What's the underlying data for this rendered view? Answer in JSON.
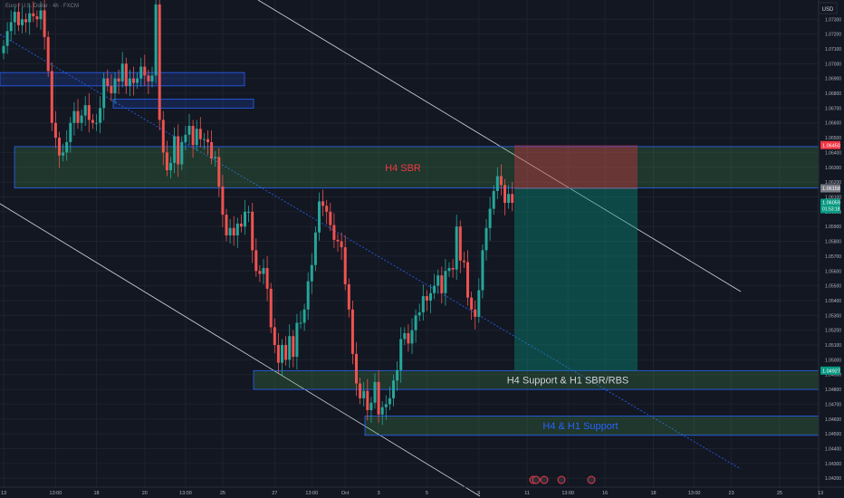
{
  "header": {
    "symbol_title": "Euro / U.S. Dollar · 4h · FXCM"
  },
  "price_scale": {
    "currency": "USD",
    "badges": {
      "stop": "1.06450",
      "current": "1.06059",
      "countdown": "01:53:18",
      "entry": "1.06158",
      "target": "1.04927"
    }
  },
  "zones": [
    {
      "id": "h4-sbr",
      "label": "H4 SBR",
      "price_top": 1.0644,
      "price_bottom": 1.0616,
      "color": "#4caf50",
      "label_color": "#f23645"
    },
    {
      "id": "h4-support",
      "label": "H4 Support & H1 SBR/RBS",
      "price_top": 1.04927,
      "price_bottom": 1.048,
      "color": "#4caf50",
      "label_color": "#d1d4dc"
    },
    {
      "id": "h4-h1-support",
      "label": "H4 & H1 Support",
      "price_top": 1.0462,
      "price_bottom": 1.0449,
      "color": "#4caf50",
      "label_color": "#2962ff"
    },
    {
      "id": "upper-left-1",
      "label": "",
      "price_top": 1.0694,
      "price_bottom": 1.0685,
      "color": "#2962ff",
      "label_color": ""
    },
    {
      "id": "upper-left-2",
      "label": "",
      "price_top": 1.0676,
      "price_bottom": 1.067,
      "color": "#2962ff",
      "label_color": ""
    }
  ],
  "position": {
    "type": "short",
    "entry": 1.06158,
    "stop": 1.0645,
    "target": 1.04927
  },
  "colors": {
    "background": "#131722",
    "grid": "#1e222d",
    "up": "#26a69a",
    "down": "#ef5350",
    "text": "#b2b5be",
    "accent": "#2962ff"
  },
  "chart_data": {
    "type": "candlestick",
    "title": "Euro / U.S. Dollar · 4h · FXCM",
    "xlabel": "",
    "ylabel": "",
    "ylim": [
      1.0414,
      1.0743
    ],
    "y_ticks": [
      1.042,
      1.043,
      1.044,
      1.045,
      1.046,
      1.047,
      1.048,
      1.049,
      1.05,
      1.051,
      1.052,
      1.053,
      1.054,
      1.055,
      1.056,
      1.057,
      1.058,
      1.059,
      1.06,
      1.061,
      1.062,
      1.063,
      1.064,
      1.065,
      1.066,
      1.067,
      1.068,
      1.069,
      1.07,
      1.071,
      1.072,
      1.073
    ],
    "x_ticks": [
      {
        "label": "13",
        "bar": 0
      },
      {
        "label": "13:00",
        "bar": 14
      },
      {
        "label": "18",
        "bar": 25
      },
      {
        "label": "20",
        "bar": 38
      },
      {
        "label": "13:00",
        "bar": 49
      },
      {
        "label": "25",
        "bar": 59
      },
      {
        "label": "27",
        "bar": 73
      },
      {
        "label": "13:00",
        "bar": 83
      },
      {
        "label": "Oct",
        "bar": 92
      },
      {
        "label": "3",
        "bar": 101
      },
      {
        "label": "5",
        "bar": 114
      },
      {
        "label": "9",
        "bar": 128
      },
      {
        "label": "11",
        "bar": 141
      },
      {
        "label": "13:00",
        "bar": 152
      },
      {
        "label": "16",
        "bar": 162
      },
      {
        "label": "18",
        "bar": 175
      },
      {
        "label": "13:00",
        "bar": 186
      },
      {
        "label": "23",
        "bar": 196
      },
      {
        "label": "25",
        "bar": 209
      },
      {
        "label": "13",
        "bar": 220
      }
    ],
    "closes": [
      1.0712,
      1.0722,
      1.0728,
      1.0735,
      1.0726,
      1.073,
      1.0728,
      1.0734,
      1.0732,
      1.073,
      1.0736,
      1.0718,
      1.0695,
      1.066,
      1.065,
      1.0638,
      1.064,
      1.0647,
      1.066,
      1.0668,
      1.066,
      1.0665,
      1.0672,
      1.0662,
      1.066,
      1.066,
      1.067,
      1.069,
      1.0685,
      1.068,
      1.069,
      1.0688,
      1.07,
      1.0685,
      1.069,
      1.0687,
      1.069,
      1.0698,
      1.0692,
      1.0688,
      1.0692,
      1.074,
      1.0662,
      1.064,
      1.0628,
      1.0633,
      1.0651,
      1.0632,
      1.0647,
      1.0652,
      1.0658,
      1.0645,
      1.0656,
      1.0649,
      1.0649,
      1.0647,
      1.0636,
      1.0637,
      1.0617,
      1.0598,
      1.0584,
      1.0589,
      1.0584,
      1.0592,
      1.059,
      1.06,
      1.06,
      1.0574,
      1.056,
      1.0558,
      1.0562,
      1.0548,
      1.0522,
      1.051,
      1.0498,
      1.051,
      1.05,
      1.0516,
      1.0502,
      1.0525,
      1.0525,
      1.0534,
      1.0553,
      1.0564,
      1.0586,
      1.0607,
      1.0604,
      1.06,
      1.0591,
      1.0581,
      1.058,
      1.0576,
      1.0551,
      1.0534,
      1.0504,
      1.0484,
      1.0474,
      1.0479,
      1.0466,
      1.0471,
      1.0485,
      1.0463,
      1.0468,
      1.047,
      1.0474,
      1.0486,
      1.0493,
      1.0514,
      1.0518,
      1.0511,
      1.052,
      1.053,
      1.0532,
      1.0543,
      1.054,
      1.0545,
      1.055,
      1.0557,
      1.0545,
      1.056,
      1.0562,
      1.0561,
      1.059,
      1.0567,
      1.0566,
      1.0542,
      1.0534,
      1.0529,
      1.0547,
      1.0574,
      1.0589,
      1.0602,
      1.0614,
      1.0624,
      1.0618,
      1.0606,
      1.0612,
      1.0606
    ],
    "live_candles_start": 0,
    "x_range_bars": 225,
    "annotations": [
      "H4 SBR",
      "H4 Support & H1 SBR/RBS",
      "H4 & H1 Support"
    ]
  }
}
